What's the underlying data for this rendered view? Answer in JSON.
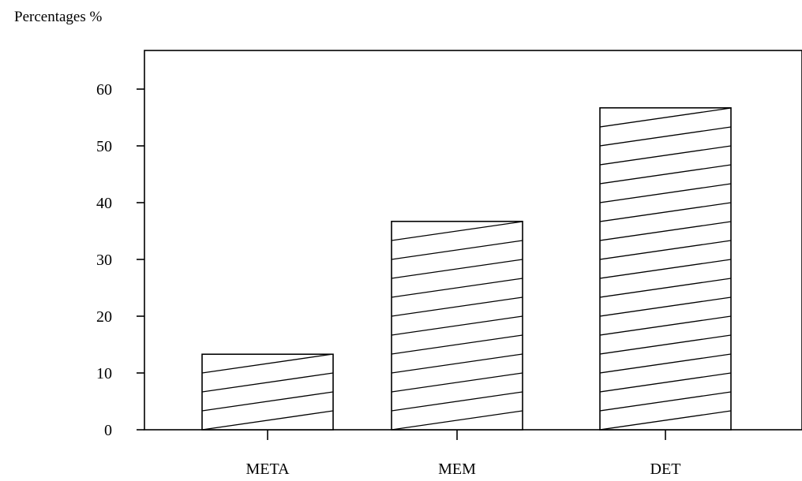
{
  "chart_data": {
    "type": "bar",
    "title": "",
    "ylabel": "Percentages %",
    "xlabel": "",
    "categories": [
      "META",
      "MEM",
      "DET"
    ],
    "values": [
      13.3,
      36.7,
      56.7
    ],
    "ylim": [
      0,
      60
    ],
    "yticks": [
      0,
      10,
      20,
      30,
      40,
      50,
      60
    ],
    "ytick_labels": [
      "0",
      "10",
      "20",
      "30",
      "40",
      "50",
      "60"
    ],
    "grid": false,
    "legend": "none",
    "bar_fill": "diagonal hatch",
    "colors": {
      "bar_outline": "#000000",
      "bar_fill": "#ffffff",
      "hatch": "#000000",
      "background": "#ffffff"
    }
  }
}
